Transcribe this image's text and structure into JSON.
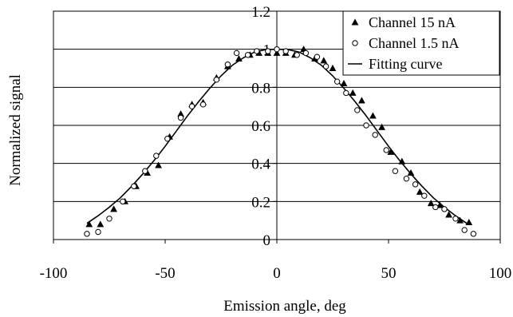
{
  "chart_data": {
    "type": "scatter",
    "title": "",
    "xlabel": "Emission angle, deg",
    "ylabel": "Normalized signal",
    "xlim": [
      -100,
      100
    ],
    "ylim": [
      0,
      1.2
    ],
    "x_ticks": [
      -100,
      -50,
      0,
      50,
      100
    ],
    "y_ticks": [
      0,
      0.2,
      0.4,
      0.6,
      0.8,
      1,
      1.2
    ],
    "x_tick_labels": [
      "-100",
      "-50",
      "0",
      "50",
      "100"
    ],
    "y_tick_labels": [
      "0",
      "0.2",
      "0.4",
      "0.6",
      "0.8",
      "1",
      "1.2"
    ],
    "grid": "horizontal",
    "legend_position": "top-right",
    "series": [
      {
        "name": "Channel 15 nA",
        "marker": "triangle",
        "x": [
          -84,
          -79,
          -73,
          -68,
          -63,
          -58,
          -53,
          -48,
          -43,
          -38,
          -33,
          -27,
          -22,
          -17,
          -12,
          -8,
          -4,
          0,
          4,
          8,
          12,
          17,
          21,
          25,
          30,
          34,
          38,
          43,
          47,
          51,
          56,
          60,
          64,
          69,
          73,
          77,
          82,
          86
        ],
        "y": [
          0.08,
          0.08,
          0.16,
          0.2,
          0.28,
          0.35,
          0.39,
          0.54,
          0.66,
          0.71,
          0.72,
          0.85,
          0.91,
          0.95,
          0.97,
          0.98,
          0.98,
          0.98,
          0.98,
          0.97,
          1.0,
          0.95,
          0.94,
          0.9,
          0.82,
          0.77,
          0.73,
          0.65,
          0.59,
          0.46,
          0.41,
          0.35,
          0.25,
          0.19,
          0.18,
          0.13,
          0.1,
          0.09
        ]
      },
      {
        "name": "Channel 1.5 nA",
        "marker": "circle",
        "x": [
          -85,
          -80,
          -75,
          -69,
          -64,
          -59,
          -54,
          -49,
          -43,
          -38,
          -33,
          -27,
          -22,
          -18,
          -13,
          -9,
          -4,
          0,
          4,
          9,
          13,
          18,
          22,
          27,
          31,
          36,
          40,
          44,
          49,
          53,
          58,
          62,
          66,
          71,
          75,
          80,
          84,
          88
        ],
        "y": [
          0.03,
          0.04,
          0.11,
          0.2,
          0.28,
          0.36,
          0.44,
          0.53,
          0.64,
          0.7,
          0.71,
          0.84,
          0.92,
          0.98,
          0.97,
          0.99,
          0.99,
          1.0,
          0.99,
          0.97,
          0.98,
          0.96,
          0.91,
          0.83,
          0.77,
          0.68,
          0.6,
          0.55,
          0.47,
          0.36,
          0.32,
          0.29,
          0.23,
          0.17,
          0.16,
          0.11,
          0.05,
          0.03
        ]
      },
      {
        "name": "Fitting curve",
        "marker": "line",
        "x": [
          -85,
          -80,
          -75,
          -70,
          -65,
          -60,
          -55,
          -50,
          -45,
          -40,
          -35,
          -30,
          -25,
          -20,
          -15,
          -10,
          -5,
          0,
          5,
          10,
          15,
          20,
          25,
          30,
          35,
          40,
          45,
          50,
          55,
          60,
          65,
          70,
          75,
          80,
          85
        ],
        "y": [
          0.085,
          0.125,
          0.17,
          0.22,
          0.28,
          0.345,
          0.415,
          0.49,
          0.57,
          0.65,
          0.725,
          0.795,
          0.86,
          0.915,
          0.955,
          0.985,
          0.998,
          1.0,
          0.998,
          0.985,
          0.955,
          0.915,
          0.86,
          0.795,
          0.725,
          0.65,
          0.57,
          0.49,
          0.415,
          0.345,
          0.28,
          0.22,
          0.17,
          0.125,
          0.085
        ]
      }
    ]
  }
}
